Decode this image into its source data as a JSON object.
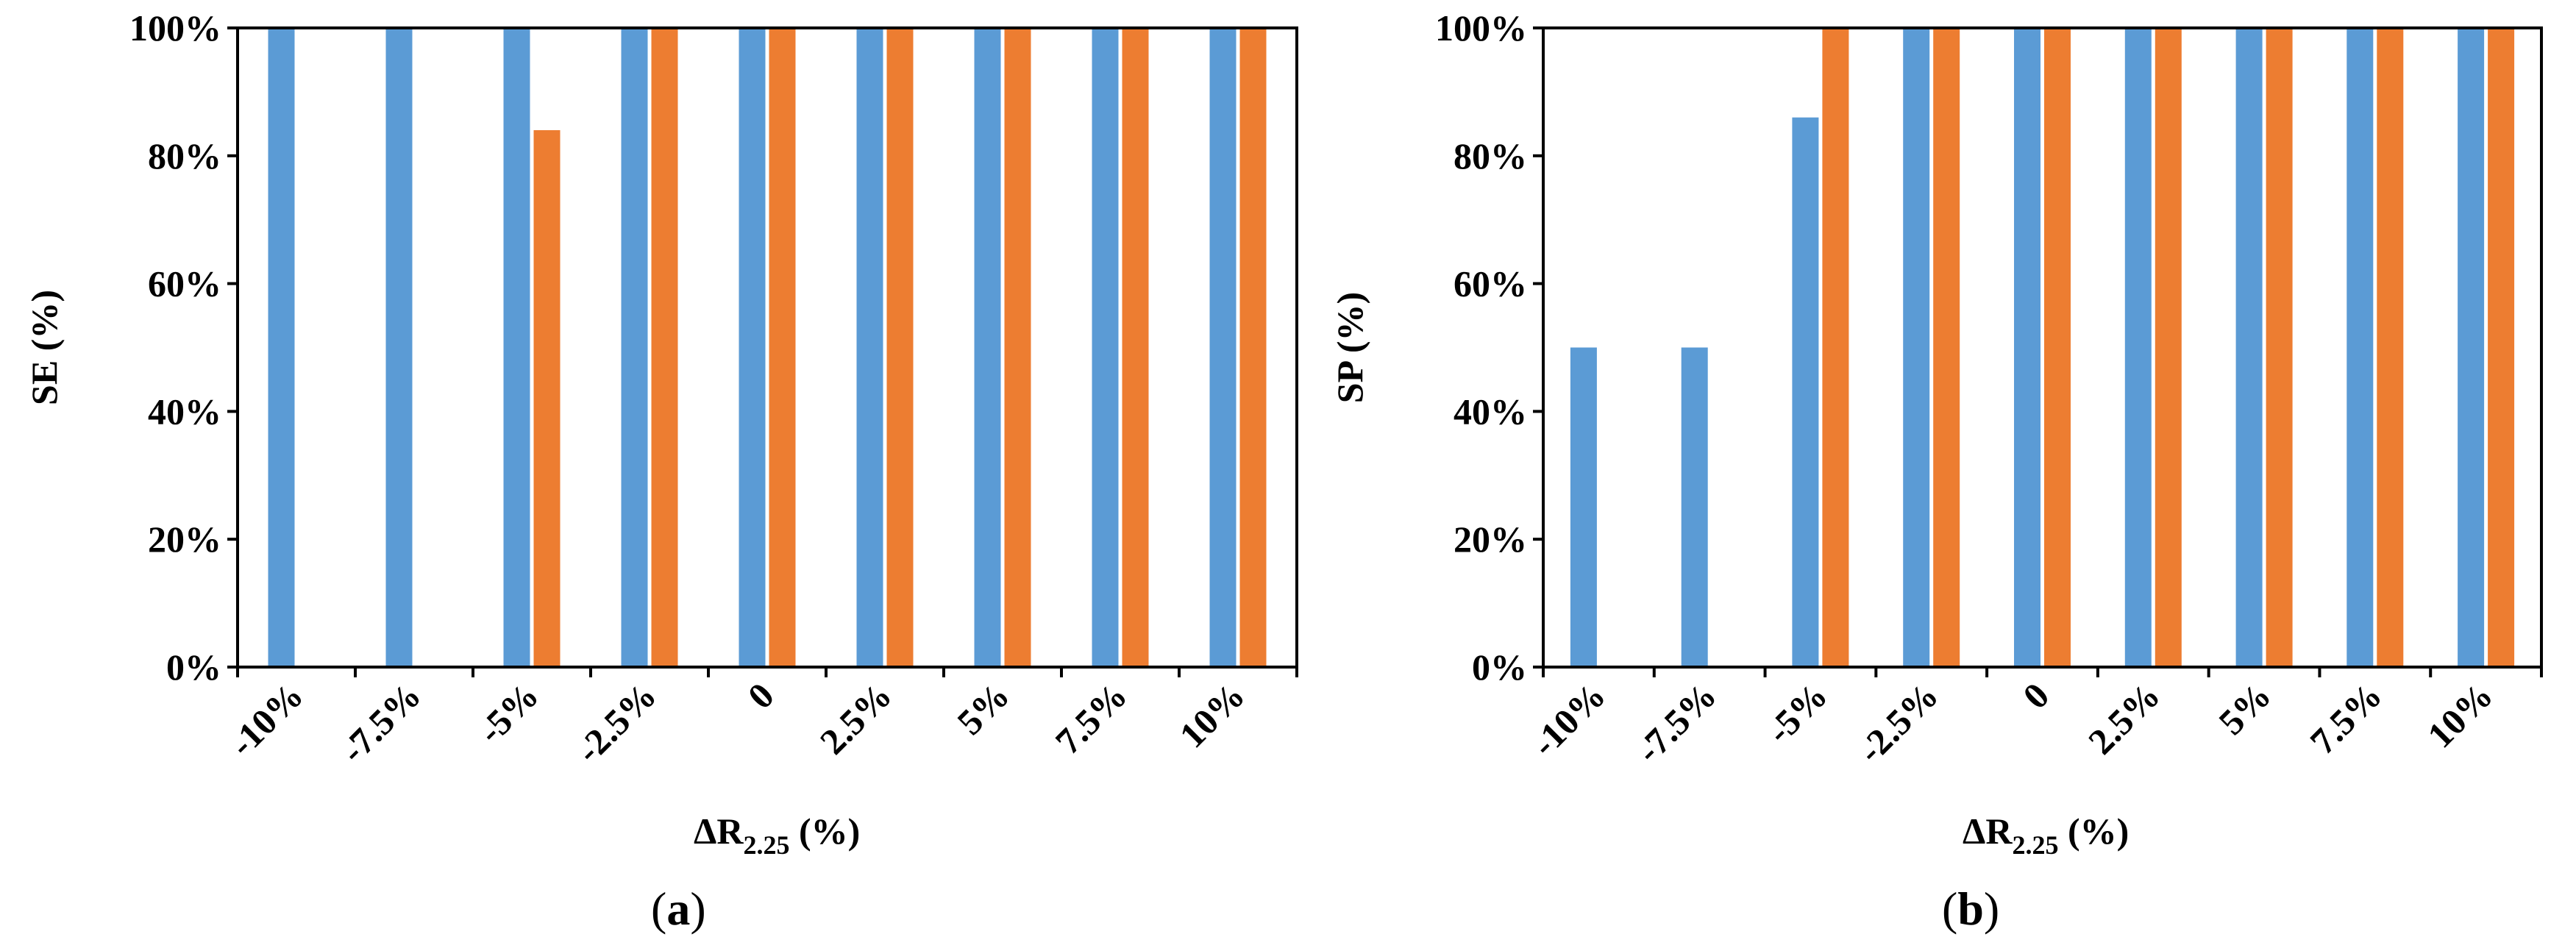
{
  "colors": {
    "series_a": "#5B9BD5",
    "series_b": "#ED7D31",
    "axis": "#000000"
  },
  "chart_data": [
    {
      "type": "bar",
      "panel_label": "a",
      "categories": [
        "-10%",
        "-7.5%",
        "-5%",
        "-2.5%",
        "0",
        "2.5%",
        "5%",
        "7.5%",
        "10%"
      ],
      "series": [
        {
          "color": "#5B9BD5",
          "values": [
            100,
            100,
            100,
            100,
            100,
            100,
            100,
            100,
            100
          ]
        },
        {
          "color": "#ED7D31",
          "values": [
            0,
            0,
            84,
            100,
            100,
            100,
            100,
            100,
            100
          ]
        }
      ],
      "ylabel": "SE (%)",
      "xlabel": {
        "main": "ΔR",
        "sub": "2.25",
        "suffix": " (%)"
      },
      "ylim": [
        0,
        100
      ],
      "yticks": [
        0,
        20,
        40,
        60,
        80,
        100
      ],
      "ytick_labels": [
        "0%",
        "20%",
        "40%",
        "60%",
        "80%",
        "100%"
      ],
      "grid": false,
      "legend": "none"
    },
    {
      "type": "bar",
      "panel_label": "b",
      "categories": [
        "-10%",
        "-7.5%",
        "-5%",
        "-2.5%",
        "0",
        "2.5%",
        "5%",
        "7.5%",
        "10%"
      ],
      "series": [
        {
          "color": "#5B9BD5",
          "values": [
            50,
            50,
            86,
            100,
            100,
            100,
            100,
            100,
            100
          ]
        },
        {
          "color": "#ED7D31",
          "values": [
            0,
            0,
            100,
            100,
            100,
            100,
            100,
            100,
            100
          ]
        }
      ],
      "ylabel": "SP (%)",
      "xlabel": {
        "main": "ΔR",
        "sub": "2.25",
        "suffix": " (%)"
      },
      "ylim": [
        0,
        100
      ],
      "yticks": [
        0,
        20,
        40,
        60,
        80,
        100
      ],
      "ytick_labels": [
        "0%",
        "20%",
        "40%",
        "60%",
        "80%",
        "100%"
      ],
      "grid": false,
      "legend": "none"
    }
  ]
}
